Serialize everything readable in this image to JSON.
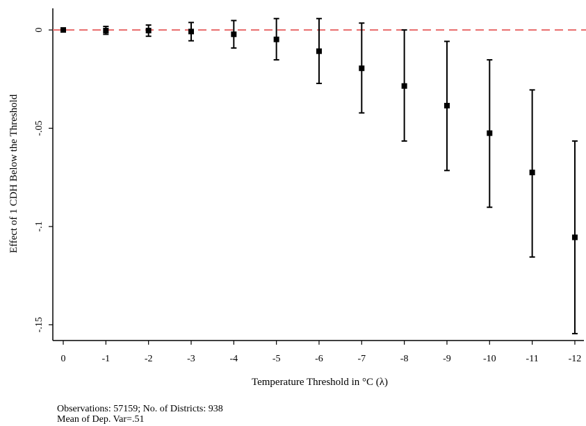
{
  "chart_data": {
    "type": "scatter",
    "subtype": "coefficient plot with confidence intervals",
    "xlabel": "Temperature Threshold in °C (λ)",
    "ylabel": "Effect of 1 CDH Below the Threshold",
    "categories": [
      "0",
      "-1",
      "-2",
      "-3",
      "-4",
      "-5",
      "-6",
      "-7",
      "-8",
      "-9",
      "-10",
      "-11",
      "-12"
    ],
    "series": [
      {
        "estimate": [
          0.0,
          -0.0003,
          -0.0003,
          -0.0008,
          -0.0022,
          -0.0048,
          -0.0108,
          -0.0195,
          -0.0285,
          -0.0385,
          -0.0525,
          -0.0725,
          -0.1055
        ],
        "ci_low": [
          -0.0005,
          -0.0022,
          -0.0032,
          -0.0055,
          -0.0092,
          -0.0152,
          -0.0272,
          -0.0422,
          -0.0565,
          -0.0715,
          -0.0902,
          -0.1155,
          -0.1545
        ],
        "ci_high": [
          0.0005,
          0.0018,
          0.0025,
          0.0038,
          0.0048,
          0.0058,
          0.0058,
          0.0035,
          0.0,
          -0.0058,
          -0.0152,
          -0.0305,
          -0.0565
        ]
      }
    ],
    "yticks": [
      0,
      -0.05,
      -0.1,
      -0.15
    ],
    "ytick_labels": [
      "0",
      "-.05",
      "-.1",
      "-.15"
    ],
    "ylim": [
      -0.158,
      0.011
    ],
    "reference_line": {
      "y": 0,
      "color": "#e86a6a",
      "style": "dashed"
    },
    "marker_color": "#000000",
    "grid": false,
    "legend": "none"
  },
  "notes": {
    "line1": "Observations: 57159; No. of Districts: 938",
    "line2": "Mean of Dep. Var=.51"
  }
}
